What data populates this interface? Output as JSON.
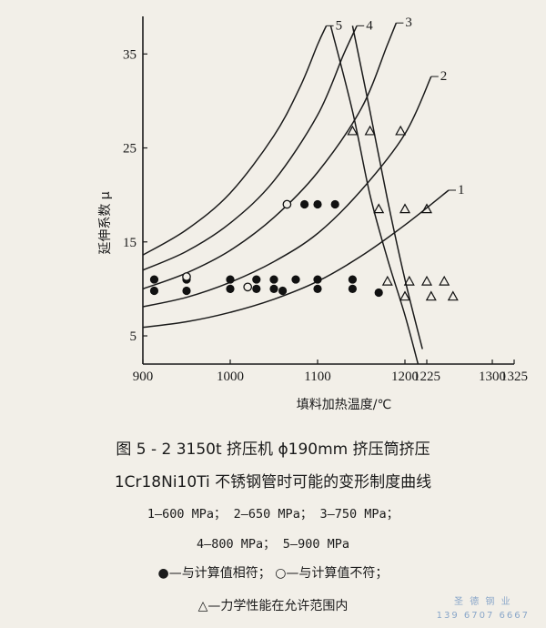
{
  "chart_data": {
    "type": "line",
    "ylabel": "延伸系数 μ",
    "xlabel": "填料加热温度/℃",
    "xlim": [
      900,
      1325
    ],
    "ylim": [
      2,
      39
    ],
    "x_ticks": [
      900,
      1000,
      1100,
      1200,
      1225,
      1300,
      1325
    ],
    "x_tick_labels": [
      "900",
      "1000",
      "1100",
      "1200",
      "1225",
      "1300",
      "1325"
    ],
    "y_ticks": [
      5,
      15,
      25,
      35
    ],
    "grid": false,
    "curves": [
      {
        "label": "1",
        "points": [
          [
            900,
            5.9
          ],
          [
            950,
            6.5
          ],
          [
            1000,
            7.5
          ],
          [
            1050,
            8.9
          ],
          [
            1100,
            10.8
          ],
          [
            1150,
            13.5
          ],
          [
            1200,
            16.8
          ],
          [
            1250,
            20.5
          ]
        ]
      },
      {
        "label": "2",
        "points": [
          [
            900,
            8.1
          ],
          [
            950,
            9.1
          ],
          [
            1000,
            10.7
          ],
          [
            1050,
            12.9
          ],
          [
            1100,
            15.9
          ],
          [
            1150,
            20.5
          ],
          [
            1200,
            26.5
          ],
          [
            1230,
            32.6
          ]
        ]
      },
      {
        "label": "3",
        "points": [
          [
            900,
            10.0
          ],
          [
            950,
            11.7
          ],
          [
            1000,
            14.1
          ],
          [
            1050,
            17.6
          ],
          [
            1100,
            22.4
          ],
          [
            1150,
            29.2
          ],
          [
            1180,
            36.0
          ],
          [
            1190,
            38.3
          ]
        ]
      },
      {
        "label": "4",
        "points": [
          [
            900,
            12.0
          ],
          [
            950,
            14.0
          ],
          [
            1000,
            17.0
          ],
          [
            1050,
            21.5
          ],
          [
            1100,
            28.5
          ],
          [
            1130,
            35.0
          ],
          [
            1145,
            38.0
          ]
        ]
      },
      {
        "label": "5",
        "points": [
          [
            900,
            13.6
          ],
          [
            950,
            16.3
          ],
          [
            1000,
            20.2
          ],
          [
            1050,
            26.3
          ],
          [
            1080,
            31.5
          ],
          [
            1100,
            36.0
          ],
          [
            1110,
            38.0
          ]
        ]
      },
      {
        "label": "",
        "points": [
          [
            1140,
            38.0
          ],
          [
            1160,
            28.9
          ],
          [
            1180,
            19.5
          ],
          [
            1200,
            11.0
          ],
          [
            1220,
            3.6
          ]
        ]
      },
      {
        "label": "",
        "points": [
          [
            1115,
            38.0
          ],
          [
            1140,
            28.9
          ],
          [
            1160,
            20.0
          ],
          [
            1180,
            13.2
          ],
          [
            1200,
            7.2
          ],
          [
            1215,
            2.0
          ]
        ]
      }
    ],
    "points_match": [
      [
        913,
        11.0
      ],
      [
        913,
        9.8
      ],
      [
        950,
        11.0
      ],
      [
        950,
        9.8
      ],
      [
        1000,
        11.0
      ],
      [
        1000,
        10.0
      ],
      [
        1030,
        11.0
      ],
      [
        1030,
        10.0
      ],
      [
        1050,
        11.0
      ],
      [
        1050,
        10.0
      ],
      [
        1060,
        9.8
      ],
      [
        1075,
        11.0
      ],
      [
        1085,
        19.0
      ],
      [
        1100,
        19.0
      ],
      [
        1120,
        19.0
      ],
      [
        1100,
        11.0
      ],
      [
        1100,
        10.0
      ],
      [
        1140,
        11.0
      ],
      [
        1140,
        10.0
      ],
      [
        1170,
        9.6
      ]
    ],
    "points_mismatch": [
      [
        950,
        11.3
      ],
      [
        1065,
        19.0
      ],
      [
        1020,
        10.2
      ]
    ],
    "points_property_ok": [
      [
        1140,
        26.8
      ],
      [
        1160,
        26.8
      ],
      [
        1195,
        26.8
      ],
      [
        1170,
        18.5
      ],
      [
        1200,
        18.5
      ],
      [
        1225,
        18.5
      ],
      [
        1180,
        10.8
      ],
      [
        1205,
        10.8
      ],
      [
        1225,
        10.8
      ],
      [
        1245,
        10.8
      ],
      [
        1200,
        9.2
      ],
      [
        1230,
        9.2
      ],
      [
        1255,
        9.2
      ]
    ]
  },
  "caption": {
    "line1": "图 5 - 2   3150t 挤压机 ϕ190mm 挤压筒挤压",
    "line2": "1Cr18Ni10Ti 不锈钢管时可能的变形制度曲线",
    "line3": "1—600 MPa； 2—650 MPa； 3—750 MPa；",
    "line4": "4—800 MPa； 5—900 MPa",
    "line5": "●—与计算值相符； ○—与计算值不符；",
    "line6": "△—力学性能在允许范围内"
  },
  "watermark": {
    "line1": "圣 德 钢 业",
    "line2": "139 6707 6667"
  }
}
